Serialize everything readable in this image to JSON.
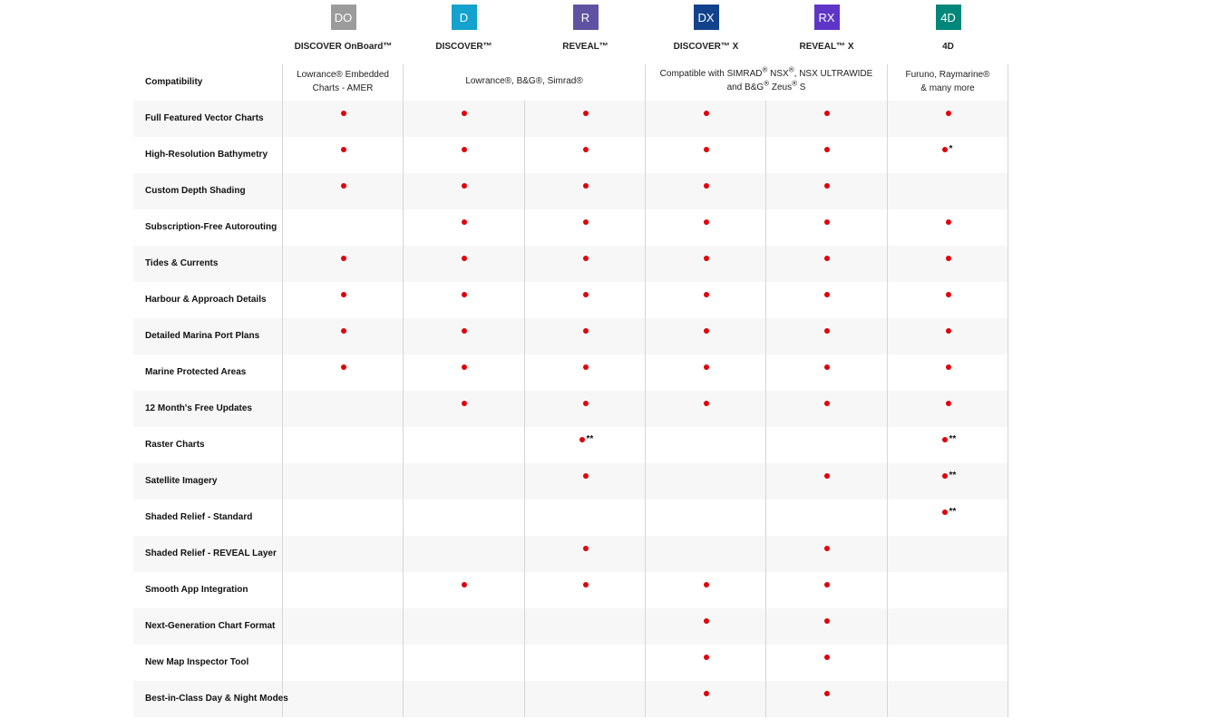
{
  "products": [
    {
      "code": "DO",
      "name": "DISCOVER OnBoard™",
      "color": "#9b9b9b"
    },
    {
      "code": "D",
      "name": "DISCOVER™",
      "color": "#14a2cf"
    },
    {
      "code": "R",
      "name": "REVEAL™",
      "color": "#6052a3"
    },
    {
      "code": "DX",
      "name": "DISCOVER™ X",
      "color": "#13428c"
    },
    {
      "code": "RX",
      "name": "REVEAL™ X",
      "color": "#5e35c7"
    },
    {
      "code": "4D",
      "name": "4D",
      "color": "#00877a"
    }
  ],
  "compatibility": {
    "label": "Compatibility",
    "do_line1": "Lowrance® Embedded",
    "do_line2": "Charts - AMER",
    "d_r": "Lowrance®, B&G®, Simrad®",
    "dx_rx_line1a": "Compatible with SIMRAD",
    "dx_rx_line1b": " NSX",
    "dx_rx_line1c": ", NSX ULTRAWIDE",
    "dx_rx_line2a": "and B&G",
    "dx_rx_line2b": " Zeus",
    "dx_rx_line2c": " S",
    "reg": "®",
    "fd_line1": "Furuno, Raymarine®",
    "fd_line2": "& many more"
  },
  "features": [
    {
      "label": "Full Featured Vector Charts",
      "cells": [
        "dot",
        "dot",
        "dot",
        "dot",
        "dot",
        "dot"
      ]
    },
    {
      "label": "High-Resolution Bathymetry",
      "cells": [
        "dot",
        "dot",
        "dot",
        "dot",
        "dot",
        "dot*"
      ]
    },
    {
      "label": "Custom Depth Shading",
      "cells": [
        "dot",
        "dot",
        "dot",
        "dot",
        "dot",
        ""
      ]
    },
    {
      "label": "Subscription-Free Autorouting",
      "cells": [
        "",
        "dot",
        "dot",
        "dot",
        "dot",
        "dot"
      ]
    },
    {
      "label": "Tides & Currents",
      "cells": [
        "dot",
        "dot",
        "dot",
        "dot",
        "dot",
        "dot"
      ]
    },
    {
      "label": "Harbour & Approach Details",
      "cells": [
        "dot",
        "dot",
        "dot",
        "dot",
        "dot",
        "dot"
      ]
    },
    {
      "label": "Detailed Marina Port Plans",
      "cells": [
        "dot",
        "dot",
        "dot",
        "dot",
        "dot",
        "dot"
      ]
    },
    {
      "label": "Marine Protected Areas",
      "cells": [
        "dot",
        "dot",
        "dot",
        "dot",
        "dot",
        "dot"
      ]
    },
    {
      "label": "12 Month's Free Updates",
      "cells": [
        "",
        "dot",
        "dot",
        "dot",
        "dot",
        "dot"
      ]
    },
    {
      "label": "Raster Charts",
      "cells": [
        "",
        "",
        "dot**",
        "",
        "",
        "dot**"
      ]
    },
    {
      "label": "Satellite Imagery",
      "cells": [
        "",
        "",
        "dot",
        "",
        "dot",
        "dot**"
      ]
    },
    {
      "label": "Shaded Relief - Standard",
      "cells": [
        "",
        "",
        "",
        "",
        "",
        "dot**"
      ]
    },
    {
      "label": "Shaded Relief - REVEAL Layer",
      "cells": [
        "",
        "",
        "dot",
        "",
        "dot",
        ""
      ]
    },
    {
      "label": "Smooth App Integration",
      "cells": [
        "",
        "dot",
        "dot",
        "dot",
        "dot",
        ""
      ]
    },
    {
      "label": "Next-Generation Chart Format",
      "cells": [
        "",
        "",
        "",
        "dot",
        "dot",
        ""
      ]
    },
    {
      "label": "New Map Inspector Tool",
      "cells": [
        "",
        "",
        "",
        "dot",
        "dot",
        ""
      ]
    },
    {
      "label": "Best-in-Class Day & Night Modes",
      "cells": [
        "",
        "",
        "",
        "dot",
        "dot",
        ""
      ]
    }
  ],
  "marks": {
    "single": "*",
    "double": "**"
  },
  "dot_color": "#e0000b"
}
